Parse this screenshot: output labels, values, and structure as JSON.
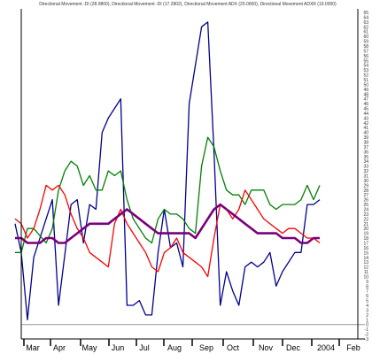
{
  "chart_data": {
    "type": "line",
    "title": "Directional Movement -DI (28.9800), Directional Movement -DI (17.2802), Directional Movement ADX (25.0000), Directional Movement ADXR (19.0000)",
    "xlabel": "",
    "ylabel": "",
    "x_ticks": [
      "Mar",
      "Apr",
      "May",
      "Jun",
      "Jul",
      "Aug",
      "Sep",
      "Oct",
      "Nov",
      "Dec",
      "2004",
      "Feb"
    ],
    "x_range": [
      0,
      50
    ],
    "y_ticks": [
      -3,
      -2,
      -1,
      0,
      1,
      2,
      3,
      4,
      5,
      6,
      7,
      8,
      9,
      10,
      11,
      12,
      13,
      14,
      15,
      16,
      17,
      18,
      19,
      20,
      21,
      22,
      23,
      24,
      25,
      26,
      27,
      28,
      29,
      30,
      31,
      32,
      33,
      34,
      35,
      36,
      37,
      38,
      39,
      40,
      41,
      42,
      43,
      44,
      45,
      46,
      47,
      48,
      49,
      50,
      51,
      52,
      53,
      54,
      55,
      56,
      57,
      58,
      59,
      60,
      61,
      62,
      63,
      64,
      65
    ],
    "ylim": [
      -3,
      65
    ],
    "reference_line": 0,
    "grid": false,
    "colors": {
      "background": "#ffffff",
      "axis": "#000000",
      "reference_line": "#999999"
    },
    "series": [
      {
        "color": "#000090",
        "x": [
          0,
          1,
          2,
          3,
          5,
          6,
          7,
          9,
          10,
          11,
          12,
          13,
          14,
          15,
          17,
          18,
          19,
          20,
          21,
          22,
          23,
          24,
          25,
          26,
          27,
          28,
          30,
          31,
          32,
          33,
          34,
          35,
          36,
          37,
          38,
          39,
          40,
          41,
          42,
          43,
          45,
          46,
          47,
          48,
          49
        ],
        "values": [
          21,
          15,
          1,
          14,
          22,
          26,
          4,
          25,
          26,
          17,
          25,
          24,
          40,
          43,
          47,
          4,
          4,
          5,
          2,
          2,
          15,
          24,
          16,
          17,
          12,
          46,
          62,
          63,
          36,
          4,
          11,
          7,
          4,
          12,
          13,
          12,
          13,
          15,
          8,
          11,
          15,
          15,
          25,
          25,
          26
        ]
      },
      {
        "color": "#008000",
        "x": [
          0,
          1,
          2,
          3,
          5,
          6,
          7,
          8,
          9,
          10,
          11,
          12,
          13,
          14,
          15,
          16,
          17,
          18,
          19,
          20,
          21,
          22,
          23,
          24,
          25,
          26,
          27,
          28,
          29,
          30,
          31,
          32,
          33,
          34,
          35,
          36,
          37,
          38,
          39,
          40,
          41,
          42,
          43,
          44,
          45,
          46,
          47,
          48,
          49
        ],
        "values": [
          15,
          15,
          20,
          20,
          17,
          20,
          28,
          32,
          34,
          33,
          29,
          31,
          28,
          28,
          32,
          31,
          32,
          26,
          22,
          20,
          18,
          17,
          22,
          24,
          23,
          23,
          22,
          20,
          19,
          33,
          39,
          37,
          32,
          28,
          27,
          27,
          25,
          28,
          28,
          28,
          25,
          24,
          25,
          25,
          25,
          26,
          29,
          26,
          29
        ]
      },
      {
        "color": "#ff0000",
        "x": [
          0,
          1,
          2,
          3,
          4,
          5,
          6,
          7,
          8,
          9,
          10,
          11,
          12,
          13,
          14,
          15,
          16,
          17,
          18,
          19,
          20,
          21,
          22,
          23,
          24,
          25,
          26,
          27,
          28,
          29,
          30,
          31,
          32,
          33,
          34,
          35,
          36,
          37,
          38,
          39,
          40,
          41,
          42,
          43,
          44,
          45,
          46,
          47,
          48,
          49
        ],
        "values": [
          22,
          21,
          18,
          20,
          24,
          29,
          28,
          29,
          27,
          23,
          20,
          18,
          15,
          14,
          13,
          12,
          21,
          24,
          21,
          19,
          17,
          15,
          12,
          11,
          15,
          16,
          18,
          15,
          14,
          13,
          12,
          10,
          18,
          25,
          24,
          22,
          24,
          28,
          26,
          24,
          22,
          21,
          20,
          19,
          20,
          20,
          19,
          18,
          18,
          17
        ]
      },
      {
        "color": "#7a007a",
        "x": [
          0,
          1,
          2,
          3,
          4,
          5,
          6,
          7,
          8,
          9,
          10,
          11,
          12,
          13,
          14,
          15,
          16,
          17,
          18,
          19,
          20,
          21,
          22,
          23,
          24,
          25,
          26,
          27,
          28,
          29,
          30,
          31,
          32,
          33,
          34,
          35,
          36,
          37,
          38,
          39,
          40,
          41,
          42,
          43,
          44,
          45,
          46,
          47,
          48,
          49
        ],
        "values": [
          18,
          18,
          17,
          17,
          17,
          18,
          18,
          17,
          17,
          18,
          19,
          20,
          21,
          21,
          21,
          21,
          22,
          23,
          24,
          23,
          22,
          21,
          20,
          19,
          19,
          19,
          19,
          19,
          19,
          18,
          20,
          22,
          24,
          25,
          24,
          23,
          22,
          21,
          20,
          19,
          19,
          19,
          19,
          18,
          18,
          18,
          17,
          17,
          18,
          18
        ]
      }
    ]
  }
}
